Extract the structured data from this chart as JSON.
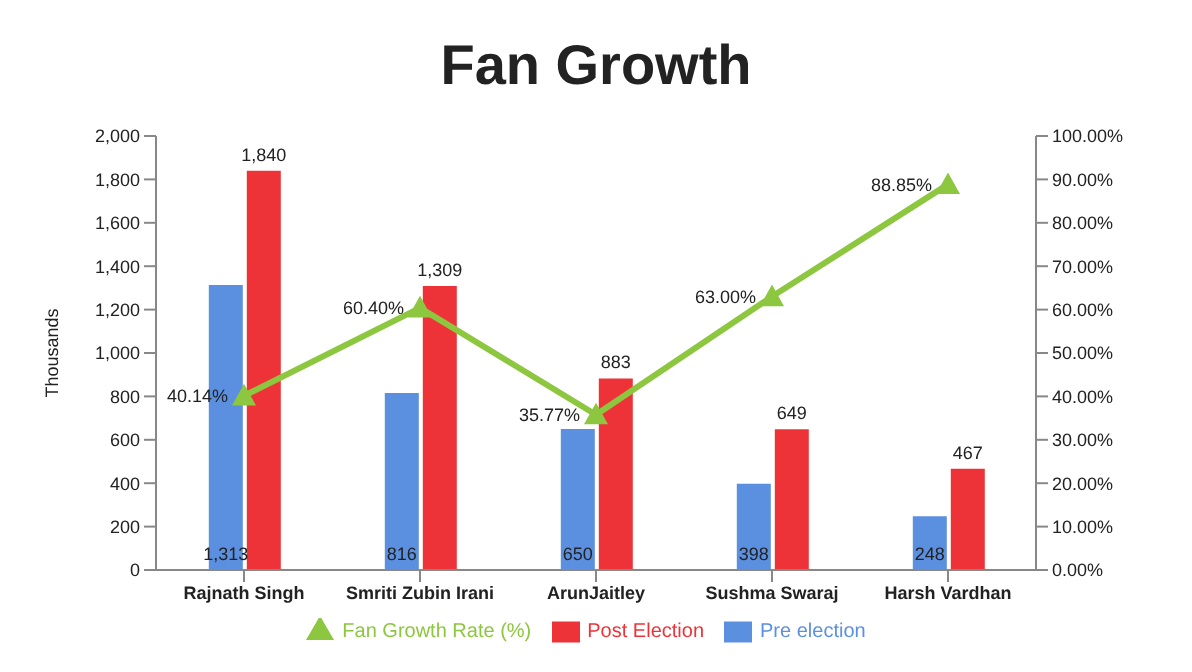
{
  "chart_data": {
    "type": "bar",
    "title": "Fan Growth",
    "ylabel": "Thousands",
    "categories": [
      "Rajnath Singh",
      "Smriti Zubin Irani",
      "ArunJaitley",
      "Sushma Swaraj",
      "Harsh Vardhan"
    ],
    "series": [
      {
        "name": "Pre election",
        "color": "#5b8fe0",
        "values": [
          1313,
          816,
          650,
          398,
          248
        ],
        "value_labels": [
          "1,313",
          "816",
          "650",
          "398",
          "248"
        ]
      },
      {
        "name": "Post Election",
        "color": "#ee3338",
        "values": [
          1840,
          1309,
          883,
          649,
          467
        ],
        "value_labels": [
          "1,840",
          "1,309",
          "883",
          "649",
          "467"
        ]
      },
      {
        "name": "Fan Growth Rate (%)",
        "type": "line",
        "axis": "y2",
        "color": "#8dc63f",
        "marker": "triangle",
        "values": [
          40.14,
          60.4,
          35.77,
          63.0,
          88.85
        ],
        "value_labels": [
          "40.14%",
          "60.40%",
          "35.77%",
          "63.00%",
          "88.85%"
        ]
      }
    ],
    "ylim": [
      0,
      2000
    ],
    "yticks": [
      {
        "value": 0,
        "label": "0"
      },
      {
        "value": 200,
        "label": "200"
      },
      {
        "value": 400,
        "label": "400"
      },
      {
        "value": 600,
        "label": "600"
      },
      {
        "value": 800,
        "label": "800"
      },
      {
        "value": 1000,
        "label": "1,000"
      },
      {
        "value": 1200,
        "label": "1,200"
      },
      {
        "value": 1400,
        "label": "1,400"
      },
      {
        "value": 1600,
        "label": "1,600"
      },
      {
        "value": 1800,
        "label": "1,800"
      },
      {
        "value": 2000,
        "label": "2,000"
      }
    ],
    "y2lim": [
      0,
      100
    ],
    "y2ticks": [
      {
        "value": 0,
        "label": "0.00%"
      },
      {
        "value": 10,
        "label": "10.00%"
      },
      {
        "value": 20,
        "label": "20.00%"
      },
      {
        "value": 30,
        "label": "30.00%"
      },
      {
        "value": 40,
        "label": "40.00%"
      },
      {
        "value": 50,
        "label": "50.00%"
      },
      {
        "value": 60,
        "label": "60.00%"
      },
      {
        "value": 70,
        "label": "70.00%"
      },
      {
        "value": 80,
        "label": "80.00%"
      },
      {
        "value": 90,
        "label": "90.00%"
      },
      {
        "value": 100,
        "label": "100.00%"
      }
    ],
    "grid": false,
    "legend": "bottom"
  }
}
